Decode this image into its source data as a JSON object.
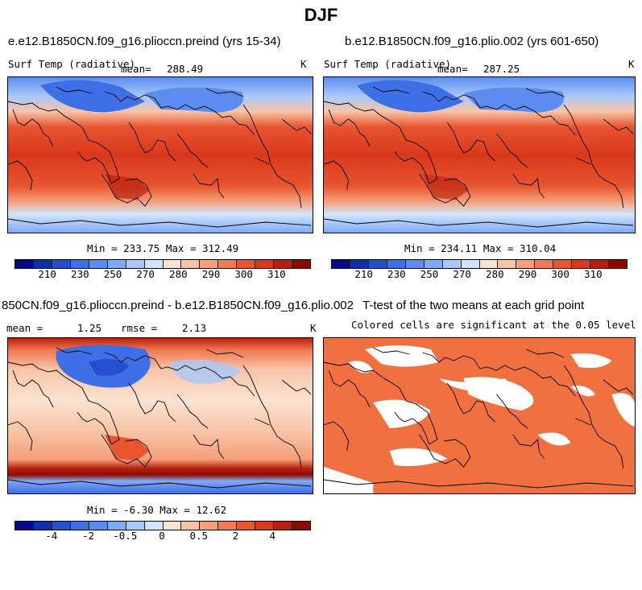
{
  "figure": {
    "title": "DJF"
  },
  "colors": {
    "abs_scale": [
      "#08088a",
      "#0c2fb0",
      "#2450d0",
      "#3d6fe6",
      "#5b8df0",
      "#7faaf5",
      "#a8c8fa",
      "#d2e4fc",
      "#fbe3d2",
      "#f8c4a6",
      "#f5a07a",
      "#f17a52",
      "#e8552f",
      "#d8381c",
      "#b81f0e",
      "#8b0a02"
    ],
    "diff_scale": [
      "#08088a",
      "#0c2fb0",
      "#2450d0",
      "#3d6fe6",
      "#5b8df0",
      "#7faaf5",
      "#a8c8fa",
      "#d2e4fc",
      "#fbe3d2",
      "#f8c4a6",
      "#f5a07a",
      "#f17a52",
      "#e8552f",
      "#d8381c",
      "#b81f0e",
      "#8b0a02"
    ],
    "significant": "#f07040"
  },
  "panels": {
    "top_left": {
      "title": "e.e12.B1850CN.f09_g16.plioccn.preind (yrs 15-34)",
      "variable": "Surf Temp (radiative)",
      "mean_label": "mean=",
      "mean_value": "288.49",
      "units": "K",
      "stats": "Min = 233.75 Max = 312.49",
      "colorbar_ticks": [
        "210",
        "230",
        "250",
        "270",
        "280",
        "290",
        "300",
        "310"
      ]
    },
    "top_right": {
      "title": "b.e12.B1850CN.f09_g16.plio.002 (yrs 601-650)",
      "variable": "Surf Temp (radiative)",
      "mean_label": "mean=",
      "mean_value": "287.25",
      "units": "K",
      "stats": "Min = 234.11 Max = 310.04",
      "colorbar_ticks": [
        "210",
        "230",
        "250",
        "270",
        "280",
        "290",
        "300",
        "310"
      ]
    },
    "bottom_left": {
      "title": "850CN.f09_g16.plioccn.preind - b.e12.B1850CN.f09_g16.plio.002",
      "mean_label": "mean =",
      "mean_value": "1.25",
      "rmse_label": "rmse =",
      "rmse_value": "2.13",
      "units": "K",
      "stats": "Min =  -6.30 Max =  12.62",
      "colorbar_ticks": [
        "-4",
        "-2",
        "-0.5",
        "0",
        "0.5",
        "2",
        "4"
      ]
    },
    "bottom_right": {
      "title": "T-test of the two means at each grid point",
      "subtitle": "Colored cells are significant at the 0.05 level"
    }
  }
}
